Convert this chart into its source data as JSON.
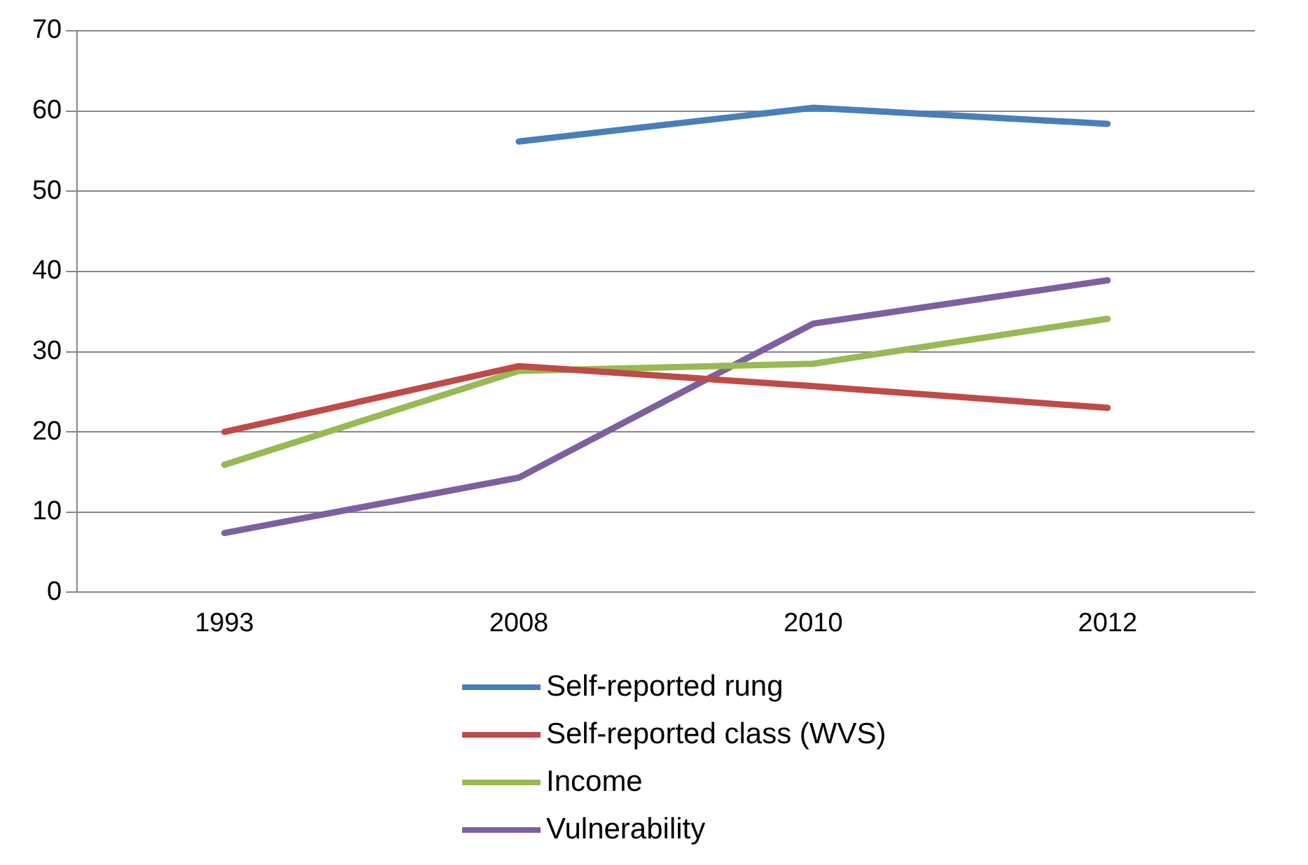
{
  "chart_data": {
    "type": "line",
    "categories": [
      "1993",
      "2008",
      "2010",
      "2012"
    ],
    "series": [
      {
        "name": "Self-reported rung",
        "color": "#4a7ebb",
        "values": [
          null,
          56.2,
          60.4,
          58.4
        ]
      },
      {
        "name": "Self-reported class (WVS)",
        "color": "#be4b48",
        "values": [
          20,
          28.2,
          25.7,
          23
        ]
      },
      {
        "name": "Income",
        "color": "#98b954",
        "values": [
          15.9,
          27.6,
          28.5,
          34.1
        ]
      },
      {
        "name": "Vulnerability",
        "color": "#7d60a0",
        "values": [
          7.4,
          14.3,
          33.5,
          38.9
        ]
      }
    ],
    "ylim": [
      0,
      70
    ],
    "yticks": [
      0,
      10,
      20,
      30,
      40,
      50,
      60,
      70
    ],
    "grid": "y",
    "legend": "bottom",
    "marker": "none",
    "line_style": "solid"
  }
}
